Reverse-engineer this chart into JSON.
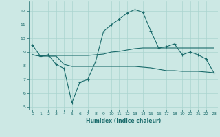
{
  "xlabel": "Humidex (Indice chaleur)",
  "xlim": [
    -0.5,
    23.5
  ],
  "ylim": [
    4.8,
    12.7
  ],
  "yticks": [
    5,
    6,
    7,
    8,
    9,
    10,
    11,
    12
  ],
  "xticks": [
    0,
    1,
    2,
    3,
    4,
    5,
    6,
    7,
    8,
    9,
    10,
    11,
    12,
    13,
    14,
    15,
    16,
    17,
    18,
    19,
    20,
    21,
    22,
    23
  ],
  "bg_color": "#cce8e4",
  "line_color": "#1a6b6b",
  "grid_color": "#aad4cf",
  "line1_x": [
    0,
    1,
    2,
    3,
    4,
    5,
    6,
    7,
    8,
    9,
    10,
    11,
    12,
    13,
    14,
    15,
    16,
    17,
    18,
    19,
    20,
    21,
    22,
    23
  ],
  "line1_y": [
    9.5,
    8.7,
    8.8,
    8.1,
    7.8,
    5.3,
    6.8,
    7.0,
    8.3,
    10.5,
    11.0,
    11.4,
    11.85,
    12.1,
    11.9,
    10.55,
    9.3,
    9.4,
    9.6,
    8.8,
    9.0,
    8.8,
    8.5,
    7.5
  ],
  "line2_x": [
    0,
    1,
    2,
    3,
    4,
    5,
    6,
    7,
    8,
    9,
    10,
    11,
    12,
    13,
    14,
    15,
    16,
    17,
    18,
    19,
    20,
    21,
    22,
    23
  ],
  "line2_y": [
    8.8,
    8.7,
    8.75,
    8.75,
    8.75,
    8.75,
    8.75,
    8.75,
    8.8,
    8.85,
    9.0,
    9.05,
    9.15,
    9.25,
    9.3,
    9.3,
    9.3,
    9.3,
    9.3,
    9.3,
    9.3,
    9.3,
    9.3,
    9.3
  ],
  "line3_x": [
    0,
    1,
    2,
    3,
    4,
    5,
    6,
    7,
    8,
    9,
    10,
    11,
    12,
    13,
    14,
    15,
    16,
    17,
    18,
    19,
    20,
    21,
    22,
    23
  ],
  "line3_y": [
    8.8,
    8.7,
    8.7,
    8.7,
    8.1,
    7.95,
    7.95,
    7.95,
    7.95,
    7.95,
    7.95,
    7.95,
    7.95,
    7.95,
    7.9,
    7.85,
    7.75,
    7.65,
    7.65,
    7.6,
    7.6,
    7.6,
    7.55,
    7.5
  ]
}
